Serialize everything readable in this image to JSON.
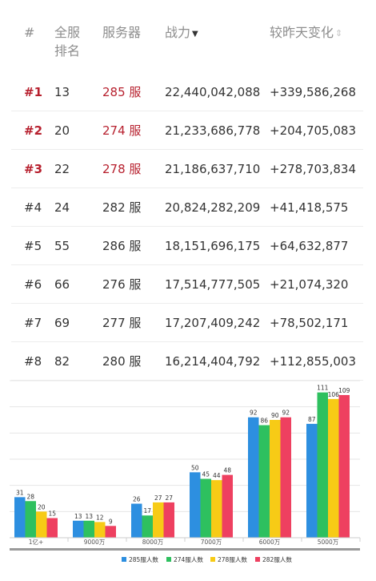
{
  "table": {
    "headers": {
      "rank": "#",
      "realm_rank_line1": "全服",
      "realm_rank_line2": "排名",
      "server": "服务器",
      "power": "战力",
      "change": "较昨天变化"
    },
    "sort_icons": {
      "power": "sort-desc-icon",
      "change": "sort-both-icon"
    },
    "rows": [
      {
        "rank": "#1",
        "realm_rank": "13",
        "server": "285 服",
        "power": "22,440,042,088",
        "change": "+339,586,268"
      },
      {
        "rank": "#2",
        "realm_rank": "20",
        "server": "274 服",
        "power": "21,233,686,778",
        "change": "+204,705,083"
      },
      {
        "rank": "#3",
        "realm_rank": "22",
        "server": "278 服",
        "power": "21,186,637,710",
        "change": "+278,703,834"
      },
      {
        "rank": "#4",
        "realm_rank": "24",
        "server": "282 服",
        "power": "20,824,282,209",
        "change": "+41,418,575"
      },
      {
        "rank": "#5",
        "realm_rank": "55",
        "server": "286 服",
        "power": "18,151,696,175",
        "change": "+64,632,877"
      },
      {
        "rank": "#6",
        "realm_rank": "66",
        "server": "276 服",
        "power": "17,514,777,505",
        "change": "+21,074,320"
      },
      {
        "rank": "#7",
        "realm_rank": "69",
        "server": "277 服",
        "power": "17,207,409,242",
        "change": "+78,502,171"
      },
      {
        "rank": "#8",
        "realm_rank": "82",
        "server": "280 服",
        "power": "16,214,404,792",
        "change": "+112,855,003"
      }
    ]
  },
  "colors": {
    "highlight": "#b7202e",
    "series": [
      "#2d8fe0",
      "#2ec05f",
      "#f7cb16",
      "#ee4060"
    ]
  },
  "chart_data": {
    "type": "bar",
    "categories": [
      "1亿+",
      "9000万",
      "8000万",
      "7000万",
      "6000万",
      "5000万"
    ],
    "series": [
      {
        "name": "285服人数",
        "values": [
          31,
          13,
          26,
          50,
          92,
          87
        ]
      },
      {
        "name": "274服人数",
        "values": [
          28,
          13,
          17,
          45,
          86,
          111
        ]
      },
      {
        "name": "278服人数",
        "values": [
          20,
          12,
          27,
          44,
          90,
          106
        ]
      },
      {
        "name": "282服人数",
        "values": [
          15,
          9,
          27,
          48,
          92,
          109
        ]
      }
    ],
    "ylim": [
      0,
      120
    ],
    "grid": true,
    "legend": "bottom"
  }
}
